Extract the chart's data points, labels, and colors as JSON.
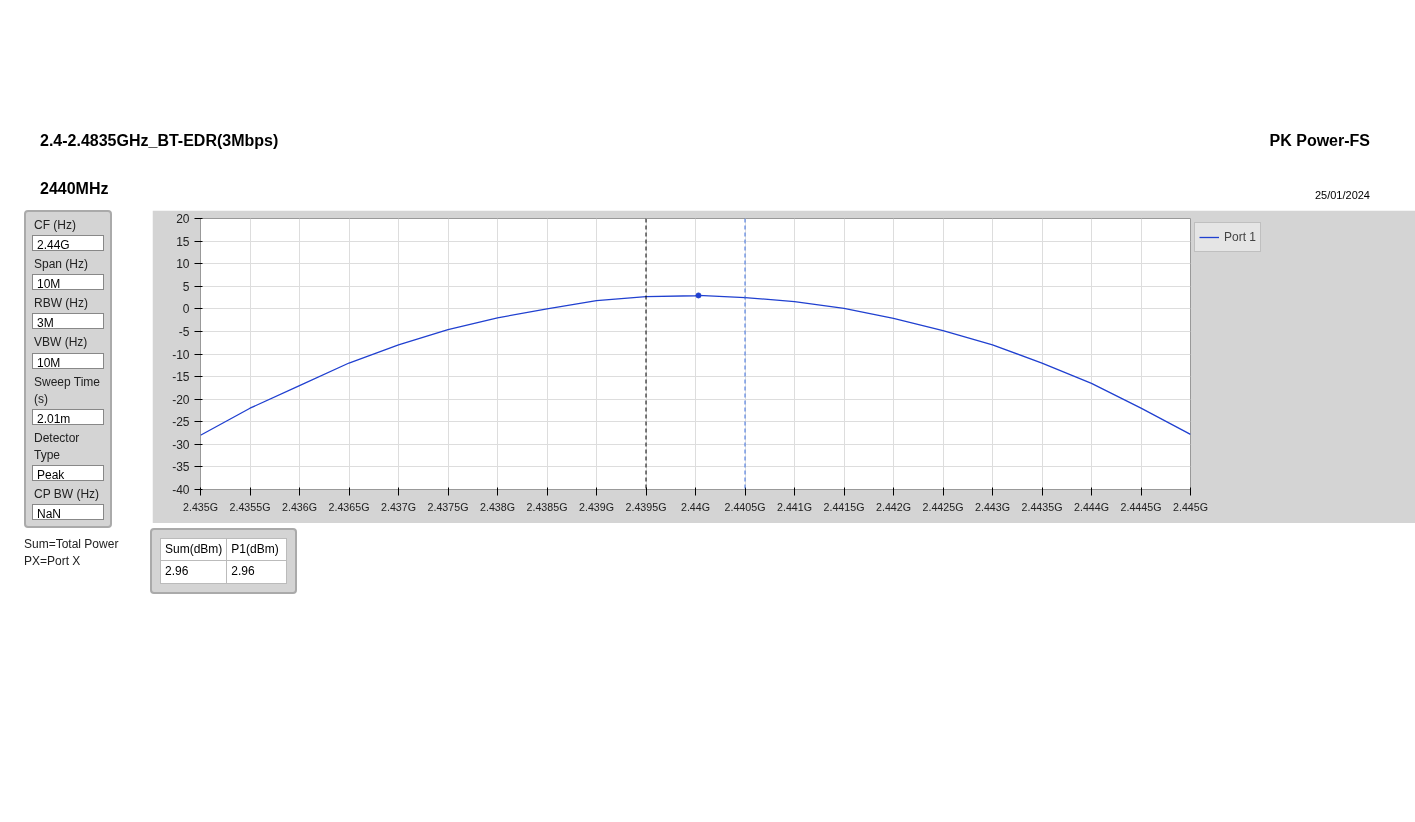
{
  "chart_data": {
    "type": "line",
    "title": "2.4-2.4835GHz_BT-EDR(3Mbps)",
    "subtitle": "2440MHz",
    "xlim": [
      2.435,
      2.445
    ],
    "ylim": [
      -40,
      20
    ],
    "xticks": [
      {
        "value": 2.435,
        "label": "2.435G"
      },
      {
        "value": 2.4355,
        "label": "2.4355G"
      },
      {
        "value": 2.436,
        "label": "2.436G"
      },
      {
        "value": 2.4365,
        "label": "2.4365G"
      },
      {
        "value": 2.437,
        "label": "2.437G"
      },
      {
        "value": 2.4375,
        "label": "2.4375G"
      },
      {
        "value": 2.438,
        "label": "2.438G"
      },
      {
        "value": 2.4385,
        "label": "2.4385G"
      },
      {
        "value": 2.439,
        "label": "2.439G"
      },
      {
        "value": 2.4395,
        "label": "2.4395G"
      },
      {
        "value": 2.44,
        "label": "2.44G"
      },
      {
        "value": 2.4405,
        "label": "2.4405G"
      },
      {
        "value": 2.441,
        "label": "2.441G"
      },
      {
        "value": 2.4415,
        "label": "2.4415G"
      },
      {
        "value": 2.442,
        "label": "2.442G"
      },
      {
        "value": 2.4425,
        "label": "2.4425G"
      },
      {
        "value": 2.443,
        "label": "2.443G"
      },
      {
        "value": 2.4435,
        "label": "2.4435G"
      },
      {
        "value": 2.444,
        "label": "2.444G"
      },
      {
        "value": 2.4445,
        "label": "2.4445G"
      },
      {
        "value": 2.445,
        "label": "2.445G"
      }
    ],
    "yticks": [
      -40,
      -35,
      -30,
      -25,
      -20,
      -15,
      -10,
      -5,
      0,
      5,
      10,
      15,
      20
    ],
    "grid": true,
    "legend": "right",
    "marker": "none",
    "line_style": "solid",
    "series": [
      {
        "name": "Port 1",
        "color": "#2040d0",
        "x": [
          2.435,
          2.4355,
          2.436,
          2.4365,
          2.437,
          2.4375,
          2.438,
          2.4385,
          2.439,
          2.4395,
          2.44,
          2.44003,
          2.4405,
          2.441,
          2.4415,
          2.442,
          2.4425,
          2.443,
          2.4435,
          2.444,
          2.4445,
          2.445
        ],
        "values": [
          -28,
          -22,
          -17,
          -12,
          -8,
          -4.6,
          -2,
          0,
          1.8,
          2.7,
          2.9,
          2.96,
          2.5,
          1.6,
          0.1,
          -2.1,
          -4.8,
          -8,
          -12,
          -16.5,
          -22,
          -27.8
        ]
      },
      {
        "type": "scatter",
        "marker": "circle",
        "color": "#2040d0",
        "x": [
          2.44003
        ],
        "values": [
          2.96
        ]
      }
    ],
    "ref_lines": [
      {
        "axis": "x",
        "value": 2.4395,
        "color": "#000000",
        "line_style": "dashed"
      },
      {
        "axis": "x",
        "value": 2.4405,
        "color": "#3a6fe0",
        "line_style": "dashed"
      }
    ],
    "annotations": [
      "CF (Hz)",
      "2.44G",
      "Span (Hz)",
      "10M",
      "RBW (Hz)",
      "3M",
      "VBW (Hz)",
      "10M",
      "Sweep Time (s)",
      "2.01m",
      "Detector Type",
      "Peak",
      "CP BW (Hz)",
      "NaN",
      "Sum=Total Power",
      "PX=Port X",
      "Sum(dBm)",
      "P1(dBm)",
      "2.96",
      "2.96",
      "PK Power-FS",
      "25/01/2024"
    ]
  }
}
